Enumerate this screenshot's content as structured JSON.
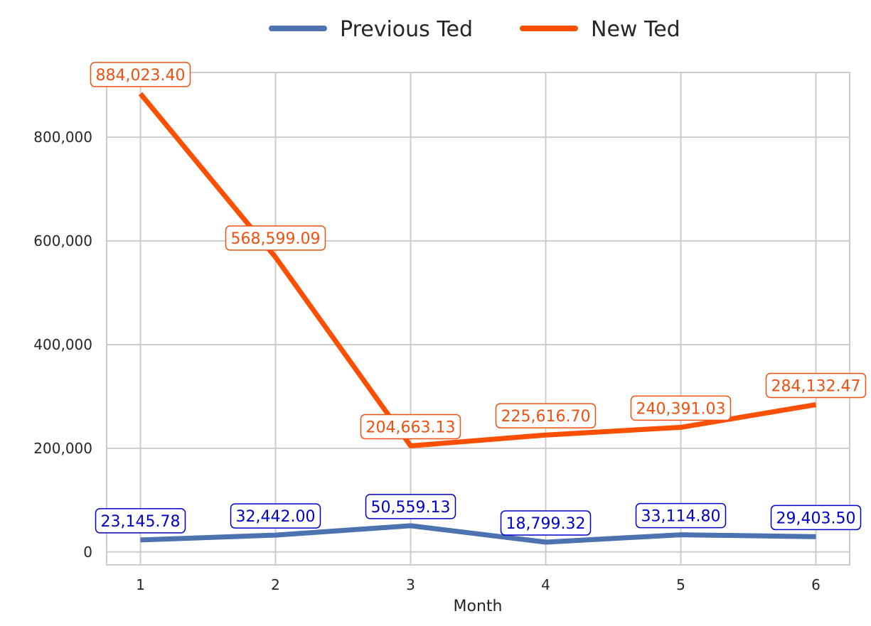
{
  "chart_data": {
    "type": "line",
    "title": "",
    "xlabel": "Month",
    "ylabel": "",
    "x": [
      1,
      2,
      3,
      4,
      5,
      6
    ],
    "xlim": [
      0.75,
      6.25
    ],
    "ylim": [
      -25000,
      925000
    ],
    "yticks": [
      0,
      200000,
      400000,
      600000,
      800000
    ],
    "ytick_labels": [
      "0",
      "200,000",
      "400,000",
      "600,000",
      "800,000"
    ],
    "xtick_labels": [
      "1",
      "2",
      "3",
      "4",
      "5",
      "6"
    ],
    "grid": true,
    "legend_position": "top-center",
    "series": [
      {
        "name": "Previous Ted",
        "color": "#4c72b0",
        "label_color": "#0000cc",
        "values": [
          23145.78,
          32442.0,
          50559.13,
          18799.32,
          33114.8,
          29403.5
        ],
        "labels": [
          "23,145.78",
          "32,442.00",
          "50,559.13",
          "18,799.32",
          "33,114.80",
          "29,403.50"
        ]
      },
      {
        "name": "New Ted",
        "color": "#fc4f00",
        "label_color": "#f05010",
        "values": [
          884023.4,
          568599.09,
          204663.13,
          225616.7,
          240391.03,
          284132.47
        ],
        "labels": [
          "884,023.40",
          "568,599.09",
          "204,663.13",
          "225,616.70",
          "240,391.03",
          "284,132.47"
        ]
      }
    ]
  }
}
